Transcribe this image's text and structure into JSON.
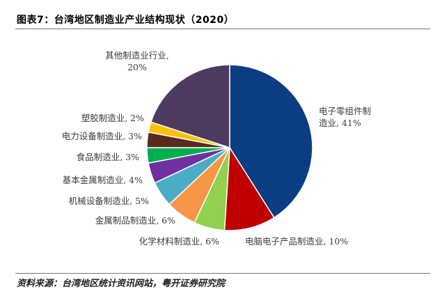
{
  "title": "图表7：台湾地区制造业产业结构现状（2020）",
  "source": "资料来源：台湾地区统计资讯网站，粤开证券研究院",
  "chart_data": {
    "type": "pie",
    "title": "图表7：台湾地区制造业产业结构现状（2020）",
    "start_angle_deg": 0,
    "direction": "clockwise",
    "slices": [
      {
        "label": "电子零组件制造业",
        "value": 41,
        "value_label": "41%",
        "color": "#0a3d82"
      },
      {
        "label": "电脑电子产品制造业",
        "value": 10,
        "value_label": "10%",
        "color": "#c00000"
      },
      {
        "label": "化学材料制造业",
        "value": 6,
        "value_label": "6%",
        "color": "#92d050"
      },
      {
        "label": "金属制品制造业",
        "value": 6,
        "value_label": "6%",
        "color": "#f79646"
      },
      {
        "label": "机械设备制造业",
        "value": 5,
        "value_label": "5%",
        "color": "#4bacc6"
      },
      {
        "label": "基本金属制造业",
        "value": 4,
        "value_label": "4%",
        "color": "#7030a0"
      },
      {
        "label": "食品制造业",
        "value": 3,
        "value_label": "3%",
        "color": "#00b050"
      },
      {
        "label": "电力设备制造业",
        "value": 3,
        "value_label": "3%",
        "color": "#5a2a1f"
      },
      {
        "label": "塑胶制造业",
        "value": 2,
        "value_label": "2%",
        "color": "#ffc000"
      },
      {
        "label": "其他制造业行业",
        "value": 20,
        "value_label": "20%",
        "color": "#4e3a5e"
      }
    ]
  }
}
